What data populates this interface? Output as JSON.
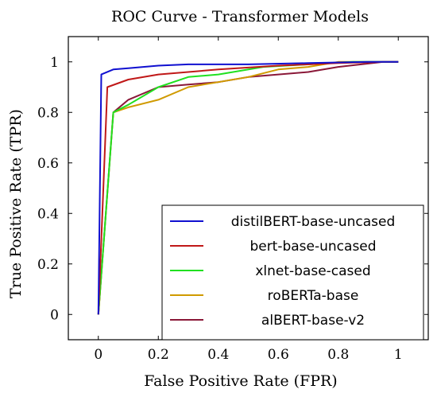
{
  "chart_data": {
    "type": "line",
    "title": "ROC Curve - Transformer Models",
    "xlabel": "False Positive Rate (FPR)",
    "ylabel": "True Positive Rate (TPR)",
    "xlim": [
      -0.1,
      1.1
    ],
    "ylim": [
      -0.1,
      1.1
    ],
    "xticks": [
      0,
      0.2,
      0.4,
      0.6,
      0.8,
      1
    ],
    "yticks": [
      0,
      0.2,
      0.4,
      0.6,
      0.8,
      1
    ],
    "legend_position": "bottom-right",
    "grid": false,
    "series": [
      {
        "name": "distilBERT-base-uncased",
        "color": "#1010d0",
        "x": [
          0,
          0.01,
          0.05,
          0.1,
          0.2,
          0.3,
          0.5,
          0.7,
          0.9,
          1
        ],
        "y": [
          0,
          0.95,
          0.97,
          0.975,
          0.985,
          0.99,
          0.99,
          0.995,
          1,
          1
        ]
      },
      {
        "name": "bert-base-uncased",
        "color": "#c01818",
        "x": [
          0,
          0.03,
          0.1,
          0.2,
          0.4,
          0.6,
          0.8,
          0.95,
          1
        ],
        "y": [
          0,
          0.9,
          0.93,
          0.95,
          0.97,
          0.985,
          0.995,
          1,
          1
        ]
      },
      {
        "name": "xlnet-base-cased",
        "color": "#20e020",
        "x": [
          0,
          0.05,
          0.1,
          0.2,
          0.3,
          0.4,
          0.55,
          0.7,
          0.85,
          1
        ],
        "y": [
          0,
          0.8,
          0.83,
          0.9,
          0.94,
          0.95,
          0.98,
          0.99,
          1,
          1
        ]
      },
      {
        "name": "roBERTa-base",
        "color": "#d09a00",
        "x": [
          0,
          0.05,
          0.1,
          0.2,
          0.3,
          0.4,
          0.5,
          0.6,
          0.7,
          0.8,
          1
        ],
        "y": [
          0,
          0.8,
          0.82,
          0.85,
          0.9,
          0.92,
          0.94,
          0.97,
          0.98,
          1,
          1
        ]
      },
      {
        "name": "alBERT-base-v2",
        "color": "#8a1838",
        "x": [
          0,
          0.05,
          0.1,
          0.2,
          0.3,
          0.4,
          0.5,
          0.6,
          0.7,
          0.8,
          0.95,
          1
        ],
        "y": [
          0,
          0.8,
          0.85,
          0.9,
          0.91,
          0.92,
          0.94,
          0.95,
          0.96,
          0.98,
          1,
          1
        ]
      }
    ]
  }
}
